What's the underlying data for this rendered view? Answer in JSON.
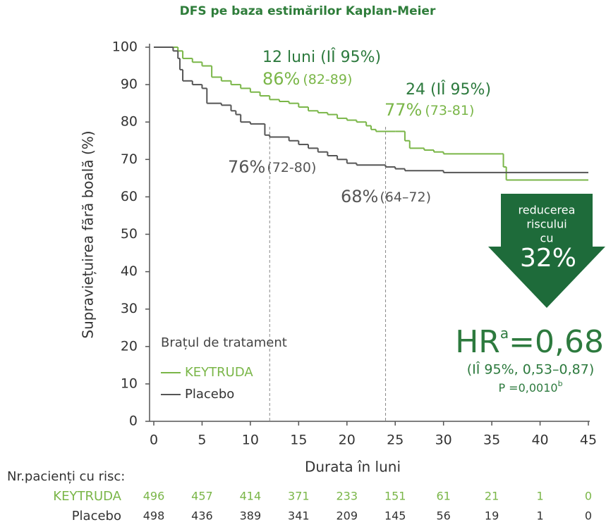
{
  "chart_data": {
    "type": "km",
    "title": "DFS pe baza estimărilor Kaplan-Meier",
    "x_label": "Durata în luni",
    "y_label": "Supraviețuirea fără boală (%)",
    "xlim": [
      0,
      45
    ],
    "ylim": [
      0,
      100
    ],
    "xticks": [
      0,
      5,
      10,
      15,
      20,
      25,
      30,
      35,
      40,
      45
    ],
    "yticks": [
      0,
      10,
      20,
      30,
      40,
      50,
      60,
      70,
      80,
      90,
      100
    ],
    "reference_lines": [
      12,
      24
    ],
    "legend_title": "Brațul de tratament",
    "series": [
      {
        "name": "KEYTRUDA",
        "color": "#7ab648",
        "x": [
          0,
          2,
          2.5,
          3,
          4,
          5,
          6,
          7,
          8,
          9,
          10,
          11,
          12,
          13,
          14,
          15,
          16,
          17,
          18,
          19,
          20,
          21,
          22,
          22.5,
          23,
          25,
          26,
          26.5,
          28,
          29,
          30,
          36,
          36.2,
          36.5,
          45
        ],
        "values": [
          100,
          100,
          99,
          97,
          96,
          95,
          92,
          91,
          90,
          89,
          88,
          87,
          86,
          85.5,
          85,
          84,
          83,
          82.5,
          82,
          81,
          80.5,
          80,
          79,
          78,
          77.5,
          77.5,
          75,
          73,
          72.5,
          72,
          71.5,
          71.5,
          68,
          64.5,
          64.5
        ]
      },
      {
        "name": "Placebo",
        "color": "#555555",
        "x": [
          0,
          2,
          2.5,
          2.7,
          3,
          4,
          5,
          5.5,
          7,
          8,
          8.5,
          9,
          10,
          11.5,
          12,
          14,
          15,
          16,
          17,
          18,
          19,
          20,
          21,
          24,
          25,
          26,
          30,
          45
        ],
        "values": [
          100,
          99,
          97,
          94,
          91,
          90,
          89,
          85,
          84.5,
          83,
          82,
          80,
          79.5,
          76.5,
          76,
          75,
          74,
          73,
          72,
          71,
          70,
          69,
          68.5,
          68,
          67.5,
          67,
          66.5,
          66.5
        ]
      }
    ],
    "annotations": {
      "m12_head": "12 luni (IÎ 95%)",
      "m12_k": "86%",
      "m12_k_ci": "(82-89)",
      "m24_head": "24 (IÎ 95%)",
      "m24_k": "77%",
      "m24_k_ci": "(73-81)",
      "m12_p": "76%",
      "m12_p_ci": "(72-80)",
      "m24_p": "68%",
      "m24_p_ci": "(64–72)",
      "arrow_l1": "reducerea",
      "arrow_l2": "riscului",
      "arrow_l3": "cu",
      "arrow_pct": "32%",
      "hr": "HR",
      "hr_sup": "a",
      "hr_val": "=0,68",
      "hr_ci": "(IÎ 95%, 0,53–0,87)",
      "p": "P =0,0010",
      "p_sup": "b"
    },
    "risk_table": {
      "title": "Nr.pacienți cu risc:",
      "rows": [
        {
          "label": "KEYTRUDA",
          "color": "#7ab648",
          "values": [
            496,
            457,
            414,
            371,
            233,
            151,
            61,
            21,
            1,
            0
          ]
        },
        {
          "label": "Placebo",
          "color": "#333333",
          "values": [
            498,
            436,
            389,
            341,
            209,
            145,
            56,
            19,
            1,
            0
          ]
        }
      ]
    }
  }
}
